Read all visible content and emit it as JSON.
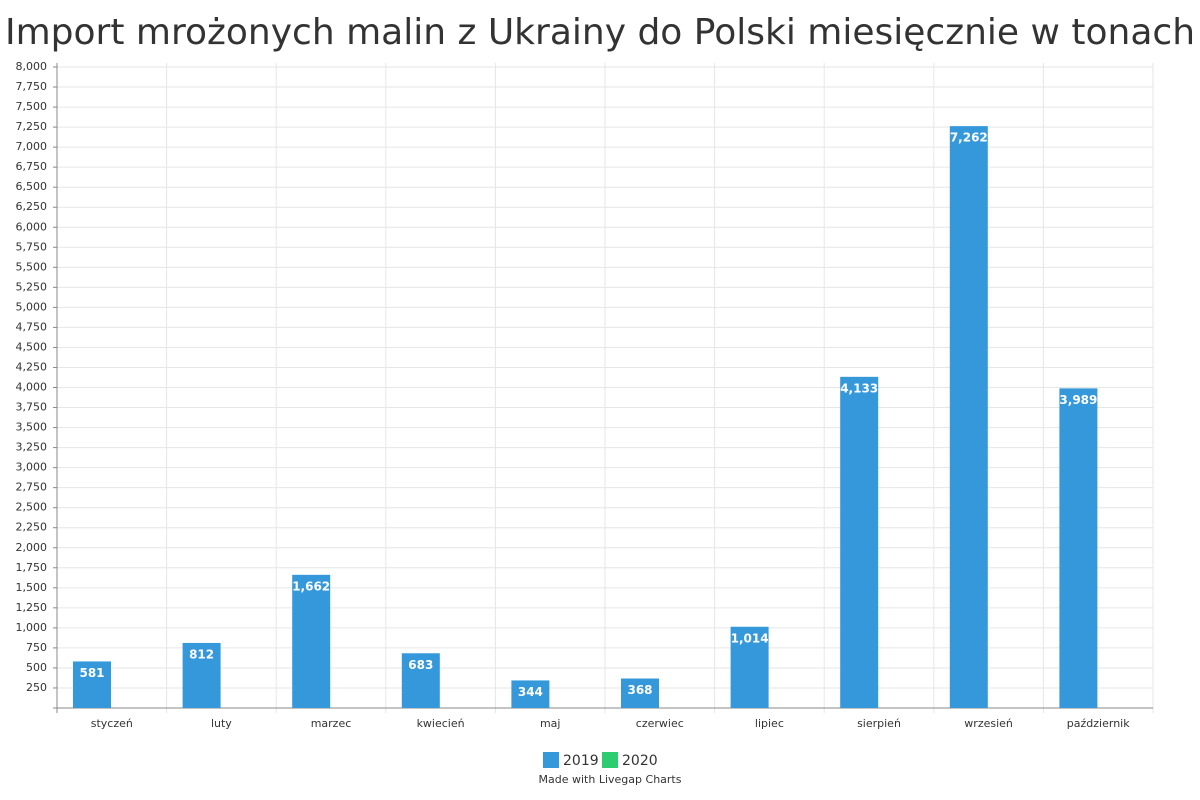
{
  "chart_data": {
    "type": "bar",
    "title": "Import mrożonych malin z Ukrainy do Polski miesięcznie w tonach",
    "footer": "Made with Livegap Charts",
    "categories": [
      "styczeń",
      "luty",
      "marzec",
      "kwiecień",
      "maj",
      "czerwiec",
      "lipiec",
      "sierpień",
      "wrzesień",
      "październik"
    ],
    "series": [
      {
        "name": "2019",
        "color": "#3498db",
        "values": [
          581,
          812,
          1662,
          683,
          344,
          368,
          1014,
          4133,
          7262,
          3989
        ],
        "value_labels": [
          "581",
          "812",
          "1,662",
          "683",
          "344",
          "368",
          "1,014",
          "4,133",
          "7,262",
          "3,989"
        ]
      },
      {
        "name": "2020",
        "color": "#2ecc71",
        "values": [
          null,
          null,
          null,
          null,
          null,
          null,
          null,
          null,
          null,
          null
        ]
      }
    ],
    "ylim": [
      0,
      8000
    ],
    "yticks": [
      250,
      500,
      750,
      {
        "value": 1000,
        "label": "1,000"
      },
      {
        "value": 1250,
        "label": "1,250"
      },
      {
        "value": 1500,
        "label": "1,500"
      },
      {
        "value": 1750,
        "label": "1,750"
      },
      {
        "value": 2000,
        "label": "2,000"
      },
      {
        "value": 2250,
        "label": "2,250"
      },
      {
        "value": 2500,
        "label": "2,500"
      },
      {
        "value": 2750,
        "label": "2,750"
      },
      {
        "value": 3000,
        "label": "3,000"
      },
      {
        "value": 3250,
        "label": "3,250"
      },
      {
        "value": 3500,
        "label": "3,500"
      },
      {
        "value": 3750,
        "label": "3,750"
      },
      {
        "value": 4000,
        "label": "4,000"
      },
      {
        "value": 4250,
        "label": "4,250"
      },
      {
        "value": 4500,
        "label": "4,500"
      },
      {
        "value": 4750,
        "label": "4,750"
      },
      {
        "value": 5000,
        "label": "5,000"
      },
      {
        "value": 5250,
        "label": "5,250"
      },
      {
        "value": 5500,
        "label": "5,500"
      },
      {
        "value": 5750,
        "label": "5,750"
      },
      {
        "value": 6000,
        "label": "6,000"
      },
      {
        "value": 6250,
        "label": "6,250"
      },
      {
        "value": 6500,
        "label": "6,500"
      },
      {
        "value": 6750,
        "label": "6,750"
      },
      {
        "value": 7000,
        "label": "7,000"
      },
      {
        "value": 7250,
        "label": "7,250"
      },
      {
        "value": 7500,
        "label": "7,500"
      },
      {
        "value": 7750,
        "label": "7,750"
      },
      {
        "value": 8000,
        "label": "8,000"
      }
    ],
    "grid": true
  }
}
